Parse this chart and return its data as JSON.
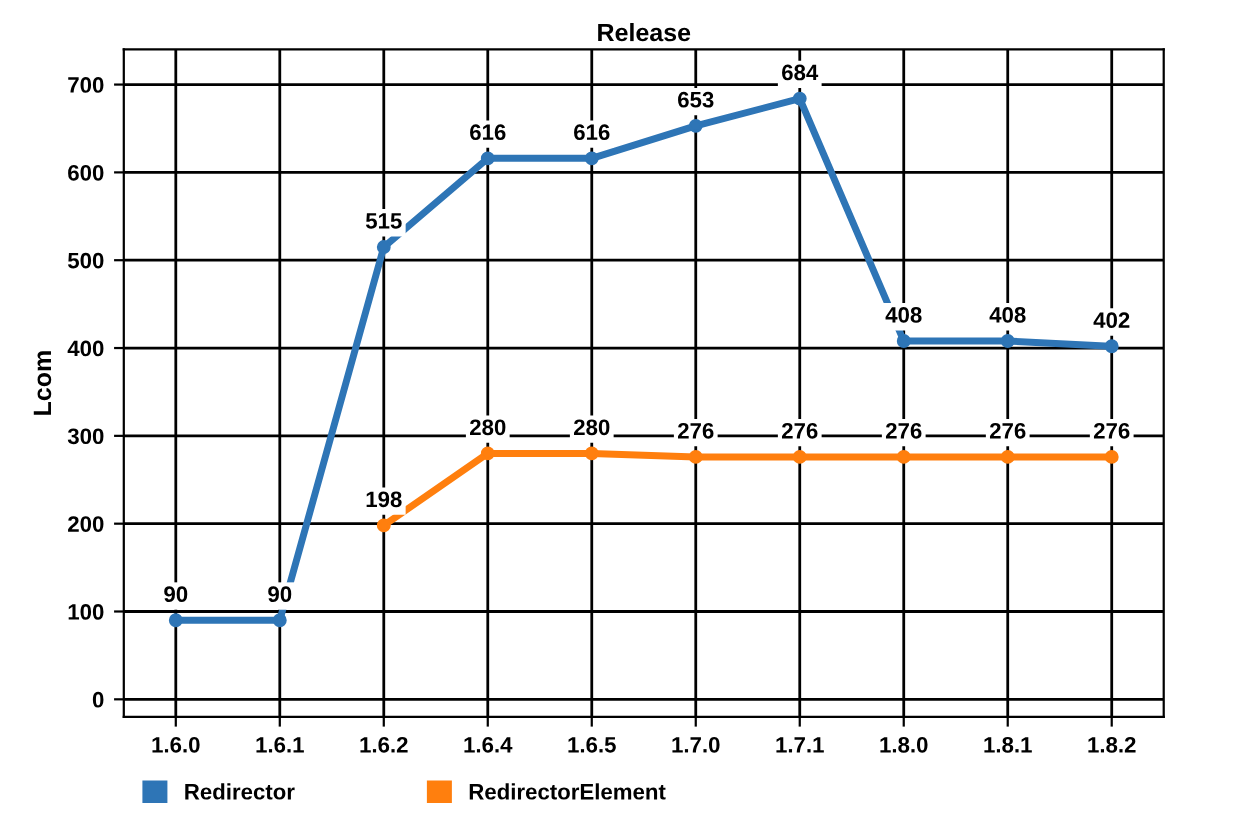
{
  "chart_data": {
    "type": "line",
    "title": "Release",
    "ylabel": "Lcom",
    "categories": [
      "1.6.0",
      "1.6.1",
      "1.6.2",
      "1.6.4",
      "1.6.5",
      "1.7.0",
      "1.7.1",
      "1.8.0",
      "1.8.1",
      "1.8.2"
    ],
    "series": [
      {
        "name": "Redirector",
        "color": "#2e75b6",
        "values": [
          90,
          90,
          515,
          616,
          616,
          653,
          684,
          408,
          408,
          402
        ]
      },
      {
        "name": "RedirectorElement",
        "color": "#ff7f0e",
        "values": [
          null,
          null,
          198,
          280,
          280,
          276,
          276,
          276,
          276,
          276
        ]
      }
    ],
    "ylim": [
      -20,
      740
    ],
    "yticks": [
      0,
      100,
      200,
      300,
      400,
      500,
      600,
      700
    ],
    "grid": true,
    "legend": "bottom left",
    "marker": "circle",
    "line_style": "solid",
    "data_labels": true
  }
}
